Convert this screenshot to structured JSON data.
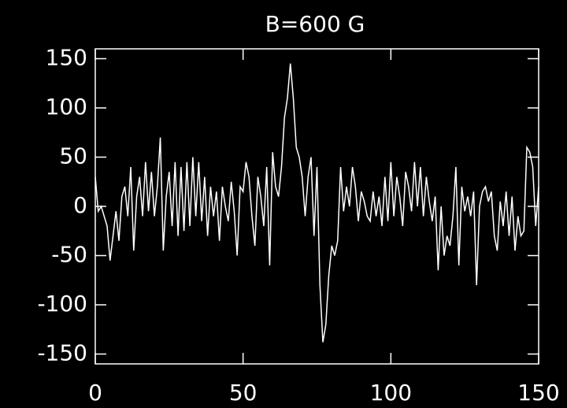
{
  "chart_data": {
    "type": "line",
    "title": "B=600 G",
    "x": [
      0,
      1,
      2,
      3,
      4,
      5,
      6,
      7,
      8,
      9,
      10,
      11,
      12,
      13,
      14,
      15,
      16,
      17,
      18,
      19,
      20,
      21,
      22,
      23,
      24,
      25,
      26,
      27,
      28,
      29,
      30,
      31,
      32,
      33,
      34,
      35,
      36,
      37,
      38,
      39,
      40,
      41,
      42,
      43,
      44,
      45,
      46,
      47,
      48,
      49,
      50,
      51,
      52,
      53,
      54,
      55,
      56,
      57,
      58,
      59,
      60,
      61,
      62,
      63,
      64,
      65,
      66,
      67,
      68,
      69,
      70,
      71,
      72,
      73,
      74,
      75,
      76,
      77,
      78,
      79,
      80,
      81,
      82,
      83,
      84,
      85,
      86,
      87,
      88,
      89,
      90,
      91,
      92,
      93,
      94,
      95,
      96,
      97,
      98,
      99,
      100,
      101,
      102,
      103,
      104,
      105,
      106,
      107,
      108,
      109,
      110,
      111,
      112,
      113,
      114,
      115,
      116,
      117,
      118,
      119,
      120,
      121,
      122,
      123,
      124,
      125,
      126,
      127,
      128,
      129,
      130,
      131,
      132,
      133,
      134,
      135,
      136,
      137,
      138,
      139,
      140,
      141,
      142,
      143,
      144,
      145,
      146,
      147,
      148,
      149,
      150
    ],
    "series": [
      {
        "color": "#ffffff",
        "values": [
          30,
          -5,
          0,
          -10,
          -20,
          -55,
          -30,
          -5,
          -35,
          10,
          20,
          -10,
          40,
          -45,
          10,
          30,
          -10,
          45,
          -5,
          35,
          -10,
          20,
          70,
          -45,
          10,
          35,
          -20,
          45,
          -30,
          40,
          -25,
          45,
          -20,
          50,
          -10,
          45,
          -15,
          30,
          -30,
          20,
          -10,
          15,
          -35,
          20,
          0,
          -15,
          25,
          -5,
          -50,
          20,
          15,
          45,
          30,
          -10,
          -40,
          30,
          10,
          -20,
          40,
          -60,
          55,
          20,
          10,
          40,
          90,
          110,
          145,
          110,
          60,
          50,
          30,
          -10,
          30,
          50,
          -30,
          40,
          -80,
          -138,
          -120,
          -70,
          -40,
          -50,
          -35,
          40,
          -5,
          20,
          0,
          40,
          20,
          -15,
          15,
          5,
          -10,
          -15,
          15,
          -10,
          10,
          -20,
          30,
          -15,
          45,
          -10,
          30,
          10,
          -20,
          35,
          20,
          -5,
          45,
          0,
          40,
          -10,
          30,
          5,
          -15,
          10,
          -65,
          0,
          -50,
          -30,
          -40,
          -10,
          40,
          -60,
          20,
          -5,
          10,
          -10,
          15,
          -80,
          0,
          15,
          20,
          5,
          15,
          -30,
          -45,
          5,
          -20,
          15,
          -30,
          10,
          -45,
          -10,
          -30,
          -25,
          60,
          55,
          40,
          -20,
          20
        ]
      }
    ],
    "xlim": [
      0,
      150
    ],
    "xticks": [
      0,
      50,
      100,
      150
    ],
    "ylim": [
      -160,
      160
    ],
    "yticks": [
      -150,
      -100,
      -50,
      0,
      50,
      100,
      150
    ]
  }
}
